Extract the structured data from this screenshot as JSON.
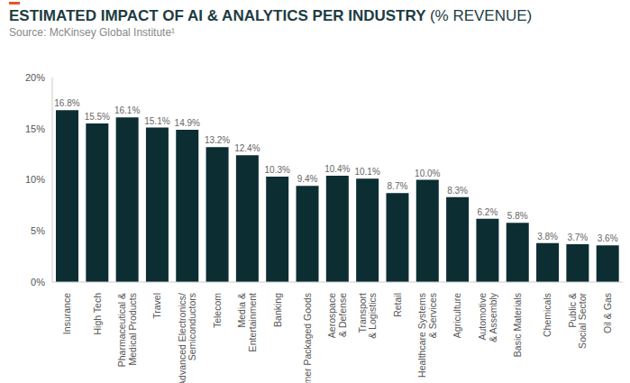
{
  "chart_data": {
    "type": "bar",
    "title": "ESTIMATED IMPACT OF AI & ANALYTICS PER INDUSTRY (% REVENUE)",
    "subtitle": "Source: McKinsey Global Institute¹",
    "categories": [
      "Insurance",
      "High Tech",
      "Pharmaceutical &\nMedical Products",
      "Travel",
      "Advanced Electronics/\nSemiconductors",
      "Telecom",
      "Media &\nEntertainment",
      "Banking",
      "Consumer Packaged Goods",
      "Aerospace\n& Defense",
      "Transport\n& Logistics",
      "Retail",
      "Healthcare Systems\n& Services",
      "Agriculture",
      "Automotive\n& Assembly",
      "Basic Materials",
      "Chemicals",
      "Public &\nSocial Sector",
      "Oil & Gas"
    ],
    "values": [
      16.8,
      15.5,
      16.1,
      15.1,
      14.9,
      13.2,
      12.4,
      10.3,
      9.4,
      10.4,
      10.1,
      8.7,
      10.0,
      8.3,
      6.2,
      5.8,
      3.8,
      3.7,
      3.6
    ],
    "value_labels": [
      "16.8%",
      "15.5%",
      "16.1%",
      "15.1%",
      "14.9%",
      "13.2%",
      "12.4%",
      "10.3%",
      "9.4%",
      "10.4%",
      "10.1%",
      "8.7%",
      "10.0%",
      "8.3%",
      "6.2%",
      "5.8%",
      "3.8%",
      "3.7%",
      "3.6%"
    ],
    "color": "#0c2e33",
    "ylim": [
      0,
      20
    ],
    "yticks": [
      {
        "value": 0,
        "label": "0%"
      },
      {
        "value": 5,
        "label": "5%"
      },
      {
        "value": 10,
        "label": "10%"
      },
      {
        "value": 15,
        "label": "15%"
      },
      {
        "value": 20,
        "label": "20%"
      }
    ],
    "grid": false,
    "data_labels": true
  }
}
